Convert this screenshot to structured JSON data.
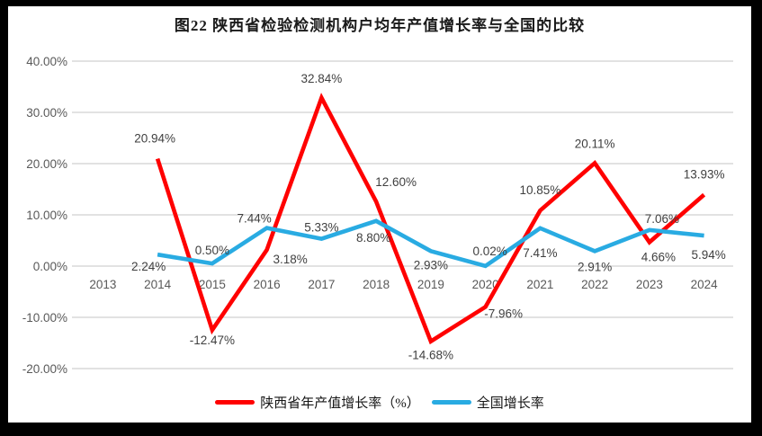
{
  "figure": {
    "title": "图22 陕西省检验检测机构户均年产值增长率与全国的比较"
  },
  "chart_data": {
    "type": "line",
    "title": "图22 陕西省检验检测机构户均年产值增长率与全国的比较",
    "categories": [
      "2013",
      "2014",
      "2015",
      "2016",
      "2017",
      "2018",
      "2019",
      "2020",
      "2021",
      "2022",
      "2023",
      "2024"
    ],
    "series": [
      {
        "name": "陕西省年产值增长率（%）",
        "color": "#FF0000",
        "values": [
          null,
          20.94,
          -12.47,
          3.18,
          32.84,
          12.6,
          -14.68,
          -7.96,
          10.85,
          20.11,
          4.66,
          13.93
        ],
        "labels": [
          "",
          "20.94%",
          "-12.47%",
          "3.18%",
          "32.84%",
          "12.60%",
          "-14.68%",
          "-7.96%",
          "10.85%",
          "20.11%",
          "4.66%",
          "13.93%"
        ]
      },
      {
        "name": "全国增长率",
        "color": "#29ABE2",
        "values": [
          null,
          2.24,
          0.5,
          7.44,
          5.33,
          8.8,
          2.93,
          0.02,
          7.41,
          2.91,
          7.06,
          5.94
        ],
        "labels": [
          "",
          "2.24%",
          "0.50%",
          "7.44%",
          "5.33%",
          "8.80%",
          "2.93%",
          "0.02%",
          "7.41%",
          "2.91%",
          "7.06%",
          "5.94%"
        ]
      }
    ],
    "y_ticks": [
      "40.00%",
      "30.00%",
      "20.00%",
      "10.00%",
      "0.00%",
      "-10.00%",
      "-20.00%"
    ],
    "ylim": [
      -20,
      40
    ],
    "grid": "horizontal",
    "legend_position": "bottom",
    "layout_hints": {
      "label_offsets": [
        [
          null,
          [
            -3,
            -18
          ],
          [
            0,
            16
          ],
          [
            26,
            15
          ],
          [
            0,
            -17
          ],
          [
            22,
            -17
          ],
          [
            0,
            20
          ],
          [
            20,
            12
          ],
          [
            0,
            -18
          ],
          [
            0,
            -17
          ],
          [
            10,
            21
          ],
          [
            0,
            -18
          ]
        ],
        [
          null,
          [
            -10,
            18
          ],
          [
            0,
            -10
          ],
          [
            -14,
            -6
          ],
          [
            0,
            -8
          ],
          [
            -3,
            23
          ],
          [
            0,
            20
          ],
          [
            5,
            -12
          ],
          [
            0,
            32
          ],
          [
            0,
            22
          ],
          [
            14,
            -8
          ],
          [
            5,
            26
          ]
        ]
      ]
    }
  },
  "colors": {
    "frame": "#000000",
    "background": "#FFFFFF",
    "gridline": "#D9D9D9",
    "axis_text": "#595959",
    "data_label": "#3F3F3F",
    "title_text": "#1A1A1A"
  }
}
